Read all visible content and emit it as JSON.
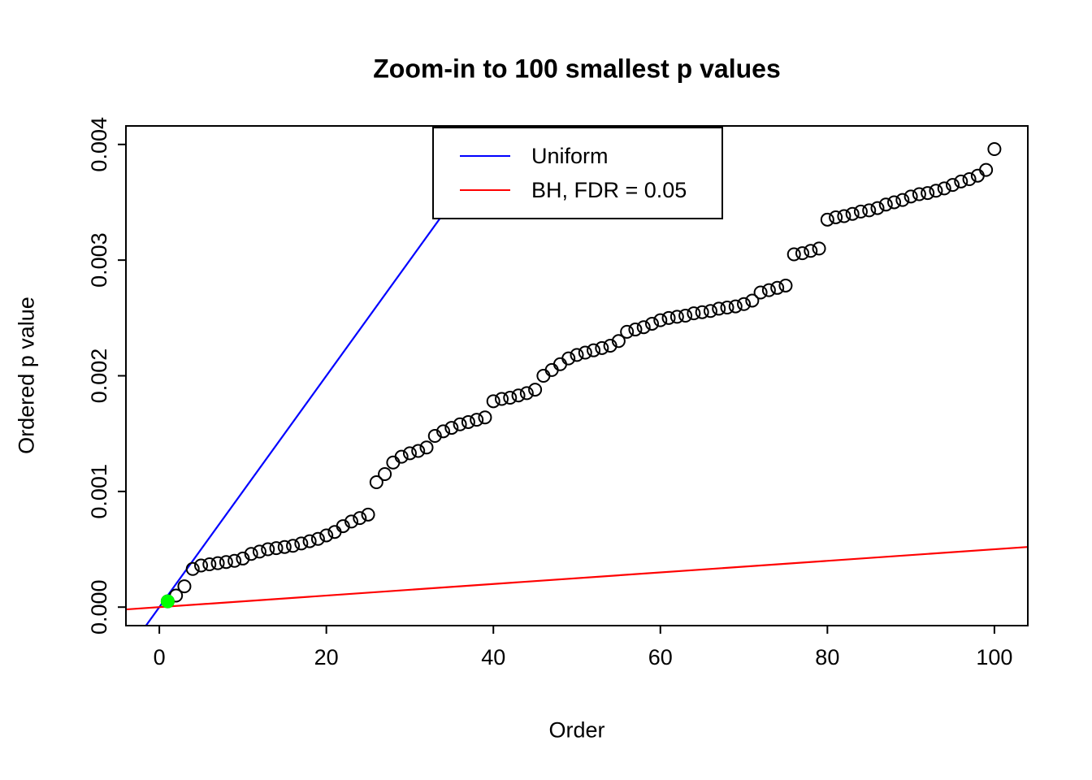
{
  "chart_data": {
    "type": "scatter",
    "title": "Zoom-in to 100 smallest p values",
    "xlabel": "Order",
    "ylabel": "Ordered p value",
    "xlim": [
      0,
      100
    ],
    "ylim": [
      0,
      0.004
    ],
    "grid": false,
    "x_ticks": {
      "values": [
        0,
        20,
        40,
        60,
        80,
        100
      ],
      "labels": [
        "0",
        "20",
        "40",
        "60",
        "80",
        "100"
      ]
    },
    "y_ticks": {
      "values": [
        0,
        0.001,
        0.002,
        0.003,
        0.004
      ],
      "labels": [
        "0.000",
        "0.001",
        "0.002",
        "0.003",
        "0.004"
      ]
    },
    "points": {
      "x_is_order_1_to_n": true,
      "values": [
        5e-05,
        0.0001,
        0.00018,
        0.00033,
        0.00036,
        0.00037,
        0.00038,
        0.00039,
        0.0004,
        0.00042,
        0.00046,
        0.00048,
        0.0005,
        0.00051,
        0.00052,
        0.00053,
        0.00055,
        0.00057,
        0.00059,
        0.00062,
        0.00065,
        0.0007,
        0.00074,
        0.00077,
        0.0008,
        0.00108,
        0.00115,
        0.00125,
        0.0013,
        0.00133,
        0.00135,
        0.00138,
        0.00148,
        0.00152,
        0.00155,
        0.00158,
        0.0016,
        0.00162,
        0.00164,
        0.00178,
        0.0018,
        0.00181,
        0.00183,
        0.00185,
        0.00188,
        0.002,
        0.00205,
        0.0021,
        0.00215,
        0.00218,
        0.0022,
        0.00222,
        0.00224,
        0.00226,
        0.0023,
        0.00238,
        0.0024,
        0.00242,
        0.00245,
        0.00248,
        0.0025,
        0.00251,
        0.00252,
        0.00254,
        0.00255,
        0.00256,
        0.00258,
        0.00259,
        0.0026,
        0.00262,
        0.00265,
        0.00272,
        0.00274,
        0.00276,
        0.00278,
        0.00305,
        0.00306,
        0.00308,
        0.0031,
        0.00335,
        0.00337,
        0.00338,
        0.0034,
        0.00342,
        0.00343,
        0.00345,
        0.00348,
        0.0035,
        0.00352,
        0.00355,
        0.00357,
        0.00358,
        0.0036,
        0.00362,
        0.00365,
        0.00368,
        0.0037,
        0.00373,
        0.00378,
        0.00396
      ],
      "marker": "open-circle",
      "marker_color": "#000000"
    },
    "highlight_point": {
      "order": 1,
      "value": 5e-05,
      "color": "#00FF00"
    },
    "lines": [
      {
        "name": "Uniform",
        "color": "#0000FF",
        "slope": 0.0001,
        "intercept": 0
      },
      {
        "name": "BH, FDR = 0.05",
        "color": "#FF0000",
        "slope": 5e-06,
        "intercept": 0
      }
    ],
    "legend": {
      "position": "top-center",
      "items": [
        {
          "label": "Uniform",
          "color": "#0000FF"
        },
        {
          "label": "BH, FDR = 0.05",
          "color": "#FF0000"
        }
      ]
    }
  }
}
